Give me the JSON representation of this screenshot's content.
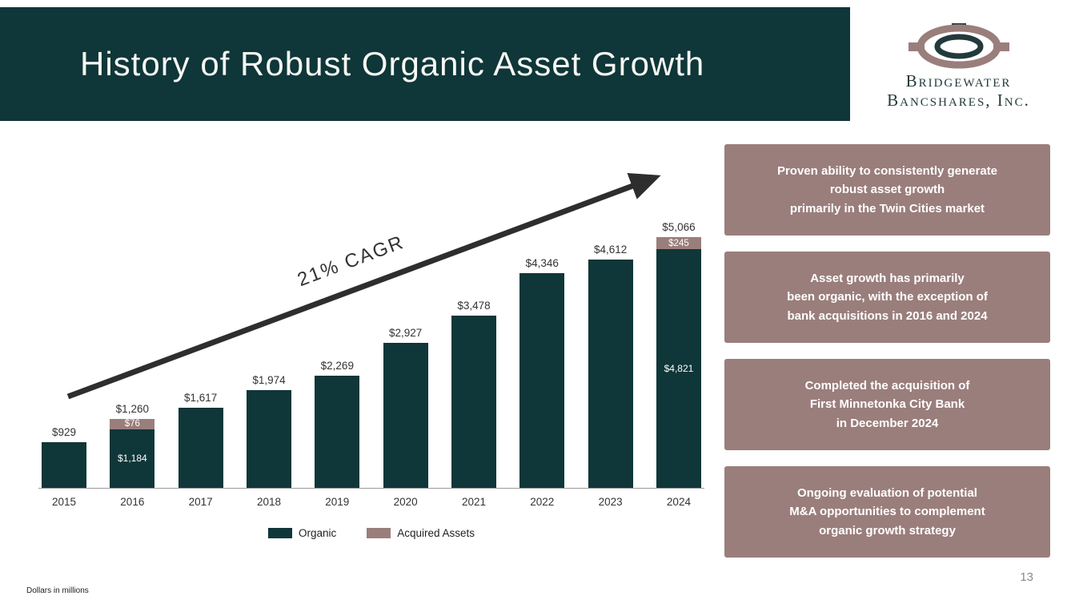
{
  "header": {
    "title": "History of Robust Organic Asset Growth",
    "logo": {
      "line1": "Bridgewater",
      "line2": "Bancshares, Inc."
    }
  },
  "chart_data": {
    "type": "bar",
    "stacked": true,
    "title": "",
    "xlabel": "",
    "ylabel": "",
    "ylim": [
      0,
      5500
    ],
    "grid": false,
    "legend_position": "bottom",
    "categories": [
      "2015",
      "2016",
      "2017",
      "2018",
      "2019",
      "2020",
      "2021",
      "2022",
      "2023",
      "2024"
    ],
    "series": [
      {
        "name": "Organic",
        "color": "#0f3638",
        "values": [
          929,
          1184,
          1617,
          1974,
          2269,
          2927,
          3478,
          4346,
          4612,
          4821
        ]
      },
      {
        "name": "Acquired Assets",
        "color": "#9a7e7c",
        "values": [
          0,
          76,
          0,
          0,
          0,
          0,
          0,
          0,
          0,
          245
        ]
      }
    ],
    "totals": [
      929,
      1260,
      1617,
      1974,
      2269,
      2927,
      3478,
      4346,
      4612,
      5066
    ],
    "total_labels": [
      "$929",
      "$1,260",
      "$1,617",
      "$1,974",
      "$2,269",
      "$2,927",
      "$3,478",
      "$4,346",
      "$4,612",
      "$5,066"
    ],
    "segment_labels": {
      "2016": {
        "organic": "$1,184",
        "acquired": "$76"
      },
      "2024": {
        "organic": "$4,821",
        "acquired": "$245"
      }
    },
    "annotation": "21% CAGR"
  },
  "callouts": [
    {
      "text": "Proven ability to consistently generate\nrobust asset growth\nprimarily in the Twin Cities market"
    },
    {
      "text": "Asset growth has primarily\nbeen organic, with the exception of\nbank acquisitions in 2016 and 2024"
    },
    {
      "text": "Completed the acquisition of\nFirst Minnetonka City Bank\nin December 2024"
    },
    {
      "text": "Ongoing evaluation of potential\nM&A opportunities to complement\norganic growth strategy"
    }
  ],
  "footer": {
    "footnote": "Dollars in millions",
    "page_number": "13"
  },
  "colors": {
    "teal": "#0f3638",
    "mauve": "#9a7e7c",
    "arrow": "#2e2e2e"
  }
}
